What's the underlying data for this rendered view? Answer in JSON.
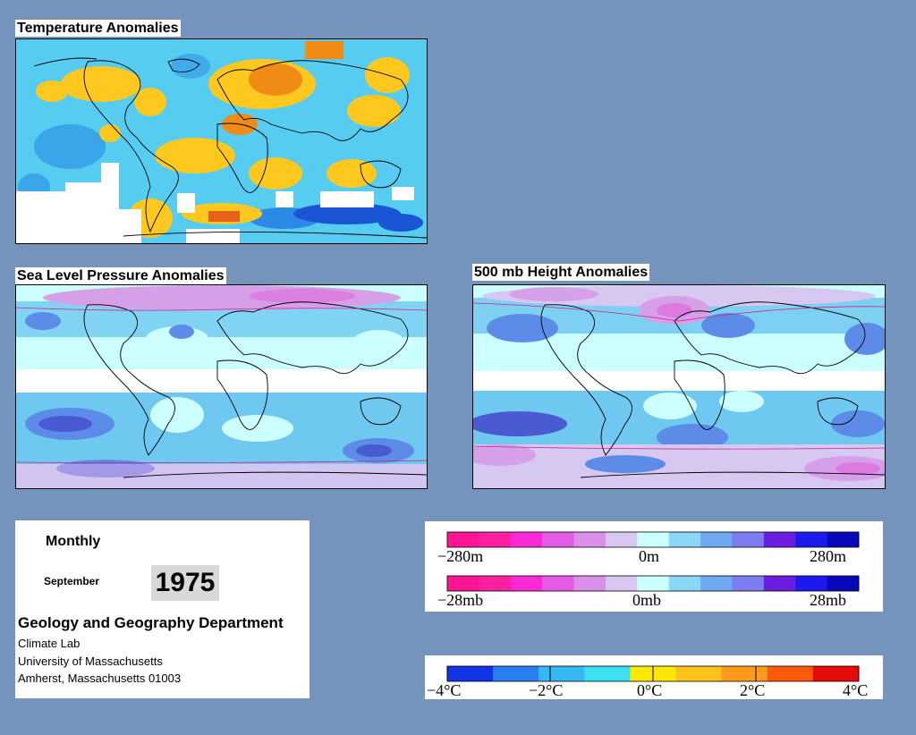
{
  "temperature_map": {
    "title": "Temperature Anomalies"
  },
  "slp_map": {
    "title": "Sea Level Pressure Anomalies"
  },
  "height_map": {
    "title": "500 mb Height Anomalies"
  },
  "info": {
    "period_label": "Monthly",
    "month": "September",
    "year": "1975",
    "department": "Geology and Geography Department",
    "lab": "Climate Lab",
    "university": "University of Massachusetts",
    "address": "Amherst, Massachusetts 01003"
  },
  "legend_height": {
    "labels": [
      "−280m",
      "0m",
      "280m"
    ],
    "colors": [
      "#ff1493",
      "#ff1fa0",
      "#ff2ad6",
      "#e25ae6",
      "#d990e6",
      "#d6c8f0",
      "#ccffff",
      "#8ad6f5",
      "#6ea8f0",
      "#7c7cf0",
      "#6a1fe0",
      "#1a1aef",
      "#0808b8"
    ]
  },
  "legend_pressure": {
    "labels": [
      "−28mb",
      "0mb",
      "28mb"
    ],
    "colors": [
      "#ff1493",
      "#ff1fa0",
      "#ff2ad6",
      "#e25ae6",
      "#d990e6",
      "#d6c8f0",
      "#ccffff",
      "#8ad6f5",
      "#6ea8f0",
      "#7c7cf0",
      "#6a1fe0",
      "#1a1aef",
      "#0808b8"
    ]
  },
  "legend_temperature": {
    "labels": [
      "−4°C",
      "−2°C",
      "0°C",
      "2°C",
      "4°C"
    ],
    "colors": [
      "#1432e6",
      "#2a7ef0",
      "#36b8f2",
      "#3de0f0",
      "#ffe800",
      "#ffc21a",
      "#ff9a1a",
      "#ff5a0a",
      "#e60a0a"
    ]
  },
  "map_colors": {
    "ocean_cool": "#55ccf0",
    "cool_strong": "#2a8ae6",
    "cold": "#1a55d6",
    "warm": "#ffc81e",
    "hot": "#f08c14",
    "very_hot": "#e8601a",
    "no_data": "#ffffff",
    "slp_base": "#ccffff",
    "slp_mid": "#6ec8f0",
    "slp_low": "#5c8ce8",
    "slp_deep": "#4a5ad0",
    "slp_pos": "#d6a0e8",
    "slp_pos_strong": "#e060d8"
  }
}
